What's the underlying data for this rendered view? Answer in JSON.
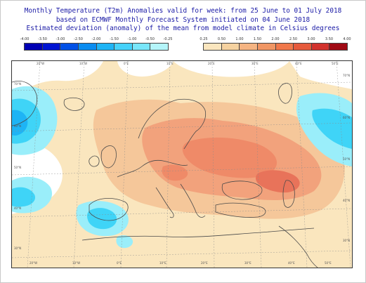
{
  "header": {
    "line1": "Monthly Temperature (T2m) Anomalies valid for week: from 25 June to 01 July 2018",
    "line2": "based on ECMWF Monthly Forecast System initiated on 04 June 2018",
    "line3": "Estimated deviation (anomaly) of the mean from model climate in Celsius degrees"
  },
  "legend_cold": {
    "labels": [
      "-4.00",
      "-3.50",
      "-3.00",
      "-2.50",
      "-2.00",
      "-1.50",
      "-1.00",
      "-0.50",
      "-0.25"
    ],
    "colors": [
      "#0000b4",
      "#0014d2",
      "#0050e6",
      "#0a8cf0",
      "#1eb4f5",
      "#46d2fa",
      "#78e6fa",
      "#b4f5fa"
    ]
  },
  "legend_warm": {
    "labels": [
      "0.25",
      "0.50",
      "1.00",
      "1.50",
      "2.00",
      "2.50",
      "3.00",
      "3.50",
      "4.00"
    ],
    "colors": [
      "#fae6be",
      "#f5d2a0",
      "#f5b482",
      "#f09664",
      "#f0784b",
      "#e65a3c",
      "#d2322d",
      "#a00a14"
    ]
  },
  "map": {
    "lon_labels_top": [
      "20°W",
      "10°W",
      "0°E",
      "10°E",
      "20°E",
      "30°E",
      "40°E",
      "50°E"
    ],
    "lon_labels_bottom": [
      "20°W",
      "10°W",
      "0°E",
      "10°E",
      "20°E",
      "30°E",
      "40°E",
      "50°E"
    ],
    "lat_labels_left": [
      "70°N",
      "60°N",
      "50°N",
      "40°N",
      "30°N"
    ],
    "lat_labels_right": [
      "70°N",
      "60°N",
      "50°N",
      "40°N",
      "30°N"
    ],
    "colors": {
      "background": "#ffffff",
      "warm_light": "#fae6be",
      "warm_mid": "#f5c79a",
      "warm_strong": "#f2a27c",
      "warm_hot": "#ef8a68",
      "warm_peak": "#e8735a",
      "cold_light": "#9aeefa",
      "cold_mid": "#3fd4f7",
      "cold_strong": "#1eb4f5",
      "coast": "#4a4a4a",
      "grid": "#8a8a8a"
    }
  }
}
